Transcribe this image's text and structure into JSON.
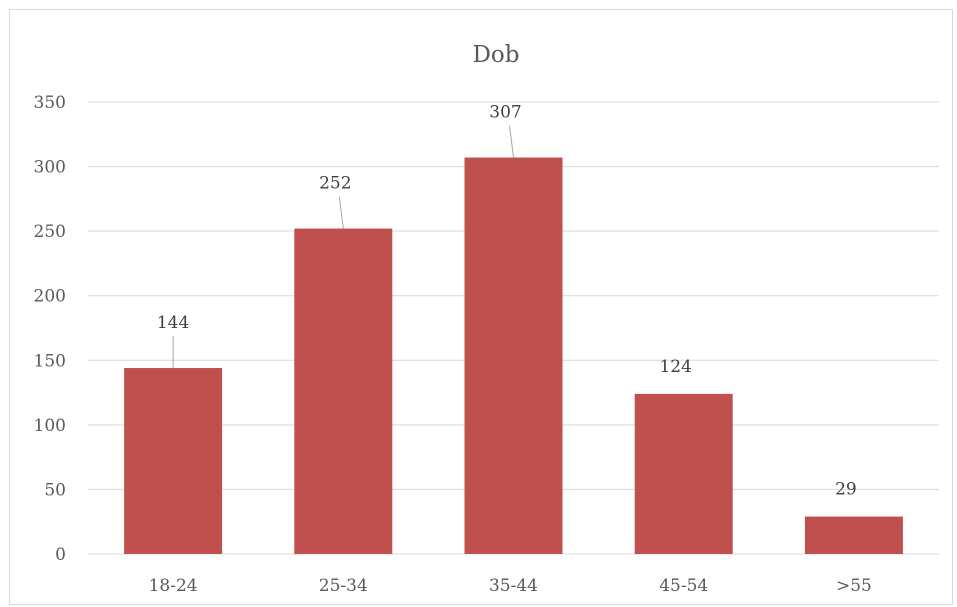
{
  "chart_data": {
    "type": "bar",
    "title": "Dob",
    "categories": [
      "18-24",
      "25-34",
      "35-44",
      "45-54",
      ">55"
    ],
    "values": [
      144,
      252,
      307,
      124,
      29
    ],
    "data_labels": [
      "144",
      "252",
      "307",
      "124",
      "29"
    ],
    "ylim": [
      0,
      350
    ],
    "yticks": [
      0,
      50,
      100,
      150,
      200,
      250,
      300,
      350
    ],
    "ytick_labels": [
      "0",
      "50",
      "100",
      "150",
      "200",
      "250",
      "300",
      "350"
    ],
    "xlabel": "",
    "ylabel": "",
    "grid": true,
    "legend": "none",
    "colors": {
      "bar": "#C0504D",
      "grid": "#d9d9d9",
      "text": "#595959",
      "leader": "#a6a6a6"
    }
  }
}
